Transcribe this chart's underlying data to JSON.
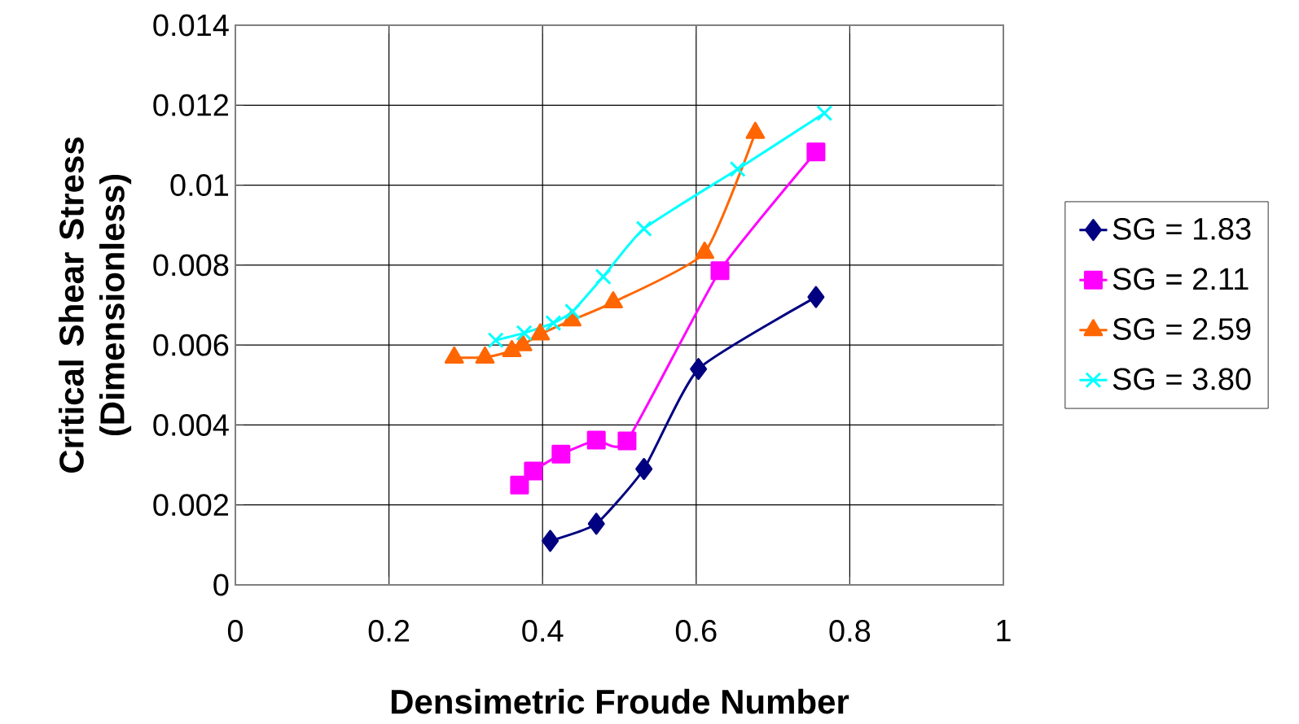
{
  "chart_data": {
    "type": "line",
    "xlabel": "Densimetric Froude Number",
    "ylabel": "Critical Shear Stress (Dimensionless)",
    "xlim": [
      0,
      1
    ],
    "xticks": [
      0,
      0.2,
      0.4,
      0.6,
      0.8,
      1
    ],
    "ylim": [
      0,
      0.014
    ],
    "yticks": [
      0,
      0.002,
      0.004,
      0.006,
      0.008,
      0.01,
      0.012,
      0.014
    ],
    "grid": true,
    "legend": "right",
    "line_style": "solid",
    "series": [
      {
        "name": "SG = 1.83",
        "color": "#000080",
        "marker": "diamond",
        "x": [
          0.41,
          0.47,
          0.532,
          0.603,
          0.756
        ],
        "values": [
          0.0011,
          0.00153,
          0.0029,
          0.0054,
          0.0072
        ]
      },
      {
        "name": "SG = 2.11",
        "color": "#ff00ff",
        "marker": "square",
        "x": [
          0.37,
          0.388,
          0.424,
          0.47,
          0.51,
          0.631,
          0.756
        ],
        "values": [
          0.0025,
          0.00285,
          0.00327,
          0.00362,
          0.0036,
          0.00786,
          0.01083
        ]
      },
      {
        "name": "SG = 2.59",
        "color": "#ff6600",
        "marker": "triangle",
        "x": [
          0.285,
          0.325,
          0.36,
          0.374,
          0.397,
          0.438,
          0.492,
          0.611,
          0.677
        ],
        "values": [
          0.00569,
          0.00569,
          0.00585,
          0.006,
          0.00627,
          0.00662,
          0.00707,
          0.00831,
          0.01131
        ]
      },
      {
        "name": "SG = 3.80",
        "color": "#00ffff",
        "marker": "cross",
        "x": [
          0.339,
          0.376,
          0.414,
          0.439,
          0.479,
          0.532,
          0.654,
          0.767
        ],
        "values": [
          0.00612,
          0.0063,
          0.00655,
          0.00684,
          0.00771,
          0.00891,
          0.0104,
          0.0118
        ]
      }
    ]
  }
}
